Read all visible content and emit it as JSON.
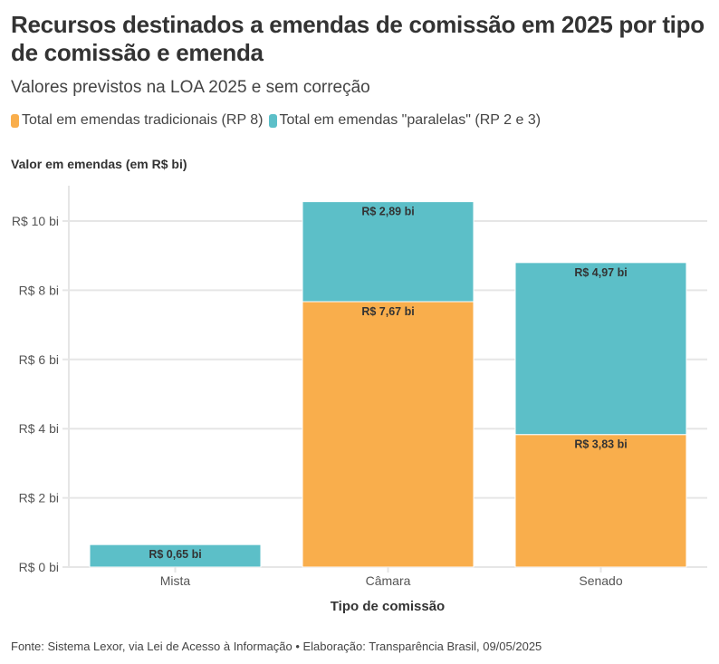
{
  "title": "Recursos destinados a emendas de comissão em 2025 por tipo de comissão e emenda",
  "subtitle": "Valores previstos na LOA 2025 e sem correção",
  "source": "Fonte: Sistema Lexor, via Lei de Acesso à Informação • Elaboração: Transparência Brasil, 09/05/2025",
  "chart_data": {
    "type": "bar",
    "stacked": true,
    "title": "Recursos destinados a emendas de comissão em 2025 por tipo de comissão e emenda",
    "subtitle": "Valores previstos na LOA 2025 e sem correção",
    "xlabel": "Tipo de comissão",
    "ylabel": "Valor em emendas (em R$ bi)",
    "categories": [
      "Mista",
      "Câmara",
      "Senado"
    ],
    "ylim": [
      0,
      11
    ],
    "yticks": [
      0,
      2,
      4,
      6,
      8,
      10
    ],
    "ytick_labels": [
      "R$ 0 bi",
      "R$ 2 bi",
      "R$ 4 bi",
      "R$ 6 bi",
      "R$ 8 bi",
      "R$ 10 bi"
    ],
    "grid": true,
    "legend_position": "top-left",
    "series": [
      {
        "name": "Total em emendas tradicionais (RP 8)",
        "color": "#f9ae4c",
        "values": [
          0,
          7.67,
          3.83
        ],
        "labels": [
          "",
          "R$ 7,67 bi",
          "R$ 3,83 bi"
        ]
      },
      {
        "name": "Total em emendas \"paralelas\" (RP 2 e 3)",
        "color": "#5cbfc8",
        "values": [
          0.65,
          2.89,
          4.97
        ],
        "labels": [
          "R$ 0,65 bi",
          "R$ 2,89 bi",
          "R$ 4,97 bi"
        ]
      }
    ]
  }
}
